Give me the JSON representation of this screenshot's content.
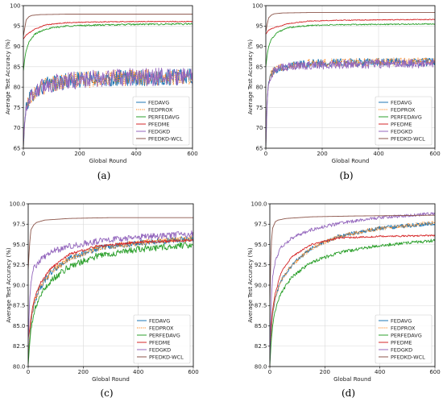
{
  "chart_data": [
    {
      "type": "line",
      "panel_label": "(a)",
      "xlabel": "Global Round",
      "ylabel": "Average Test Accuracy (%)",
      "xlim": [
        0,
        600
      ],
      "ylim": [
        65,
        100
      ],
      "xticks": [
        0,
        200,
        400,
        600
      ],
      "yticks": [
        65,
        70,
        75,
        80,
        85,
        90,
        95,
        100
      ],
      "grid": true,
      "legend_position": "lower-right",
      "series": [
        {
          "name": "FEDAVG",
          "color": "#1f77b4",
          "style": "solid",
          "noise": 2.0,
          "x": [
            0,
            5,
            10,
            20,
            40,
            80,
            150,
            250,
            400,
            600
          ],
          "y": [
            65,
            72,
            75,
            77,
            79,
            80.5,
            81.5,
            82,
            82.3,
            82.5
          ]
        },
        {
          "name": "FEDPROX",
          "color": "#ff7f0e",
          "style": "dotted",
          "noise": 2.0,
          "x": [
            0,
            5,
            10,
            20,
            40,
            80,
            150,
            250,
            400,
            600
          ],
          "y": [
            65,
            72,
            75,
            77,
            79,
            80.5,
            81.5,
            82,
            82.3,
            82.5
          ]
        },
        {
          "name": "PERFEDAVG",
          "color": "#2ca02c",
          "style": "solid",
          "noise": 0.2,
          "x": [
            0,
            5,
            10,
            20,
            40,
            80,
            150,
            250,
            400,
            600
          ],
          "y": [
            84,
            87,
            89,
            91,
            93,
            94.3,
            95,
            95.2,
            95.4,
            95.5
          ]
        },
        {
          "name": "PFEDME",
          "color": "#d62728",
          "style": "solid",
          "noise": 0.1,
          "x": [
            0,
            5,
            10,
            20,
            40,
            80,
            150,
            250,
            400,
            600
          ],
          "y": [
            91.8,
            92.3,
            92.8,
            93.3,
            94.2,
            95.3,
            95.8,
            96,
            96.1,
            96.1
          ]
        },
        {
          "name": "FEDGKD",
          "color": "#9467bd",
          "style": "solid",
          "noise": 2.2,
          "x": [
            0,
            5,
            10,
            20,
            40,
            80,
            150,
            250,
            400,
            600
          ],
          "y": [
            66,
            72,
            75,
            77,
            79,
            80.5,
            81.5,
            82,
            82.5,
            82.5
          ]
        },
        {
          "name": "PFEDKD-WCL",
          "color": "#8c564b",
          "style": "solid",
          "noise": 0,
          "x": [
            0,
            5,
            10,
            20,
            30,
            60,
            150,
            300,
            600
          ],
          "y": [
            92.5,
            94.5,
            96.5,
            97.3,
            97.6,
            97.8,
            97.9,
            97.9,
            97.9
          ]
        }
      ]
    },
    {
      "type": "line",
      "panel_label": "(b)",
      "xlabel": "Global Round",
      "ylabel": "Average Test Accuracy (%)",
      "xlim": [
        0,
        600
      ],
      "ylim": [
        65,
        100
      ],
      "xticks": [
        0,
        200,
        400,
        600
      ],
      "yticks": [
        65,
        70,
        75,
        80,
        85,
        90,
        95,
        100
      ],
      "grid": true,
      "legend_position": "lower-right",
      "series": [
        {
          "name": "FEDAVG",
          "color": "#1f77b4",
          "style": "solid",
          "noise": 1.0,
          "x": [
            0,
            5,
            10,
            20,
            40,
            80,
            150,
            250,
            400,
            600
          ],
          "y": [
            65,
            77,
            81,
            83.5,
            84.5,
            85.3,
            85.8,
            86,
            86.1,
            86.2
          ]
        },
        {
          "name": "FEDPROX",
          "color": "#ff7f0e",
          "style": "dotted",
          "noise": 1.0,
          "x": [
            0,
            5,
            10,
            20,
            40,
            80,
            150,
            250,
            400,
            600
          ],
          "y": [
            65,
            77,
            81,
            83.5,
            84.5,
            85.3,
            85.8,
            86,
            86.2,
            86.3
          ]
        },
        {
          "name": "PERFEDAVG",
          "color": "#2ca02c",
          "style": "solid",
          "noise": 0.15,
          "x": [
            0,
            5,
            10,
            20,
            40,
            80,
            150,
            250,
            400,
            600
          ],
          "y": [
            85,
            88,
            90,
            91.8,
            93.4,
            94.6,
            95.1,
            95.3,
            95.4,
            95.5
          ]
        },
        {
          "name": "PFEDME",
          "color": "#d62728",
          "style": "solid",
          "noise": 0.1,
          "x": [
            0,
            5,
            10,
            20,
            40,
            80,
            150,
            250,
            400,
            600
          ],
          "y": [
            93,
            93.5,
            94,
            94.3,
            94.8,
            95.6,
            96.2,
            96.4,
            96.5,
            96.6
          ]
        },
        {
          "name": "FEDGKD",
          "color": "#9467bd",
          "style": "solid",
          "noise": 1.1,
          "x": [
            0,
            5,
            10,
            20,
            40,
            80,
            150,
            250,
            400,
            600
          ],
          "y": [
            66,
            77,
            81,
            83.3,
            84.3,
            85,
            85.4,
            85.6,
            85.7,
            85.8
          ]
        },
        {
          "name": "PFEDKD-WCL",
          "color": "#8c564b",
          "style": "solid",
          "noise": 0,
          "x": [
            0,
            5,
            10,
            20,
            30,
            60,
            150,
            300,
            600
          ],
          "y": [
            93.5,
            95.5,
            97,
            97.7,
            98,
            98.2,
            98.3,
            98.3,
            98.3
          ]
        }
      ]
    },
    {
      "type": "line",
      "panel_label": "(c)",
      "xlabel": "Global Round",
      "ylabel": "Average Test Accuracy (%)",
      "xlim": [
        0,
        600
      ],
      "ylim": [
        80,
        100
      ],
      "xticks": [
        0,
        200,
        400,
        600
      ],
      "yticks": [
        80.0,
        82.5,
        85.0,
        87.5,
        90.0,
        92.5,
        95.0,
        97.5,
        100.0
      ],
      "grid": true,
      "legend_position": "lower-right",
      "series": [
        {
          "name": "FEDAVG",
          "color": "#1f77b4",
          "style": "solid",
          "noise": 0.35,
          "x": [
            0,
            5,
            10,
            20,
            40,
            80,
            150,
            250,
            400,
            600
          ],
          "y": [
            81,
            83.5,
            85.5,
            87.5,
            89.5,
            91.5,
            93.3,
            94.5,
            95.2,
            95.7
          ]
        },
        {
          "name": "FEDPROX",
          "color": "#ff7f0e",
          "style": "dotted",
          "noise": 0.35,
          "x": [
            0,
            5,
            10,
            20,
            40,
            80,
            150,
            250,
            400,
            600
          ],
          "y": [
            81,
            83.5,
            85.5,
            87.5,
            89.5,
            91.5,
            93.3,
            94.5,
            95.2,
            95.8
          ]
        },
        {
          "name": "PERFEDAVG",
          "color": "#2ca02c",
          "style": "solid",
          "noise": 0.4,
          "x": [
            0,
            5,
            10,
            20,
            40,
            80,
            150,
            250,
            400,
            600
          ],
          "y": [
            80.3,
            82.5,
            84.5,
            86.5,
            88.5,
            90.5,
            92.3,
            93.6,
            94.4,
            95
          ]
        },
        {
          "name": "PFEDME",
          "color": "#d62728",
          "style": "solid",
          "noise": 0.15,
          "x": [
            0,
            5,
            10,
            20,
            40,
            80,
            150,
            250,
            400,
            600
          ],
          "y": [
            83.5,
            84.5,
            86,
            88,
            90,
            92,
            93.8,
            94.8,
            95.3,
            95.5
          ]
        },
        {
          "name": "FEDGKD",
          "color": "#9467bd",
          "style": "solid",
          "noise": 0.4,
          "x": [
            0,
            5,
            10,
            20,
            40,
            80,
            150,
            250,
            400,
            600
          ],
          "y": [
            83,
            88,
            90.5,
            92,
            93,
            94,
            94.8,
            95.4,
            95.9,
            96.3
          ]
        },
        {
          "name": "PFEDKD-WCL",
          "color": "#8c564b",
          "style": "solid",
          "noise": 0,
          "x": [
            0,
            5,
            10,
            20,
            30,
            60,
            150,
            300,
            600
          ],
          "y": [
            92,
            95,
            96.8,
            97.4,
            97.7,
            98,
            98.2,
            98.3,
            98.3
          ]
        }
      ]
    },
    {
      "type": "line",
      "panel_label": "(d)",
      "xlabel": "Global Round",
      "ylabel": "Average Test Accuracy (%)",
      "xlim": [
        0,
        600
      ],
      "ylim": [
        80,
        100
      ],
      "xticks": [
        0,
        200,
        400,
        600
      ],
      "yticks": [
        80.0,
        82.5,
        85.0,
        87.5,
        90.0,
        92.5,
        95.0,
        97.5,
        100.0
      ],
      "grid": true,
      "legend_position": "lower-right",
      "series": [
        {
          "name": "FEDAVG",
          "color": "#1f77b4",
          "style": "solid",
          "noise": 0.25,
          "x": [
            0,
            5,
            10,
            20,
            40,
            80,
            150,
            250,
            400,
            600
          ],
          "y": [
            80.5,
            84,
            86.5,
            88.5,
            90.5,
            92.5,
            94.5,
            96,
            97,
            97.6
          ]
        },
        {
          "name": "FEDPROX",
          "color": "#ff7f0e",
          "style": "dotted",
          "noise": 0.25,
          "x": [
            0,
            5,
            10,
            20,
            40,
            80,
            150,
            250,
            400,
            600
          ],
          "y": [
            80.5,
            84,
            86.5,
            88.5,
            90.5,
            92.5,
            94.5,
            96,
            97,
            97.7
          ]
        },
        {
          "name": "PERFEDAVG",
          "color": "#2ca02c",
          "style": "solid",
          "noise": 0.2,
          "x": [
            0,
            5,
            10,
            20,
            40,
            80,
            150,
            250,
            400,
            600
          ],
          "y": [
            80.2,
            83,
            85,
            87,
            89,
            91,
            92.8,
            94,
            94.9,
            95.5
          ]
        },
        {
          "name": "PFEDME",
          "color": "#d62728",
          "style": "solid",
          "noise": 0.1,
          "x": [
            0,
            5,
            10,
            20,
            40,
            80,
            150,
            250,
            400,
            600
          ],
          "y": [
            82,
            85,
            87,
            89,
            91.5,
            93.5,
            95,
            95.8,
            96,
            96.1
          ]
        },
        {
          "name": "FEDGKD",
          "color": "#9467bd",
          "style": "solid",
          "noise": 0.2,
          "x": [
            0,
            5,
            10,
            20,
            40,
            80,
            150,
            250,
            400,
            600
          ],
          "y": [
            80.5,
            88,
            91,
            93,
            94.6,
            95.8,
            96.8,
            97.6,
            98.3,
            98.8
          ]
        },
        {
          "name": "PFEDKD-WCL",
          "color": "#8c564b",
          "style": "solid",
          "noise": 0,
          "x": [
            0,
            5,
            10,
            20,
            30,
            60,
            150,
            300,
            600
          ],
          "y": [
            88,
            95,
            97,
            97.8,
            98,
            98.2,
            98.4,
            98.5,
            98.6
          ]
        }
      ]
    }
  ]
}
